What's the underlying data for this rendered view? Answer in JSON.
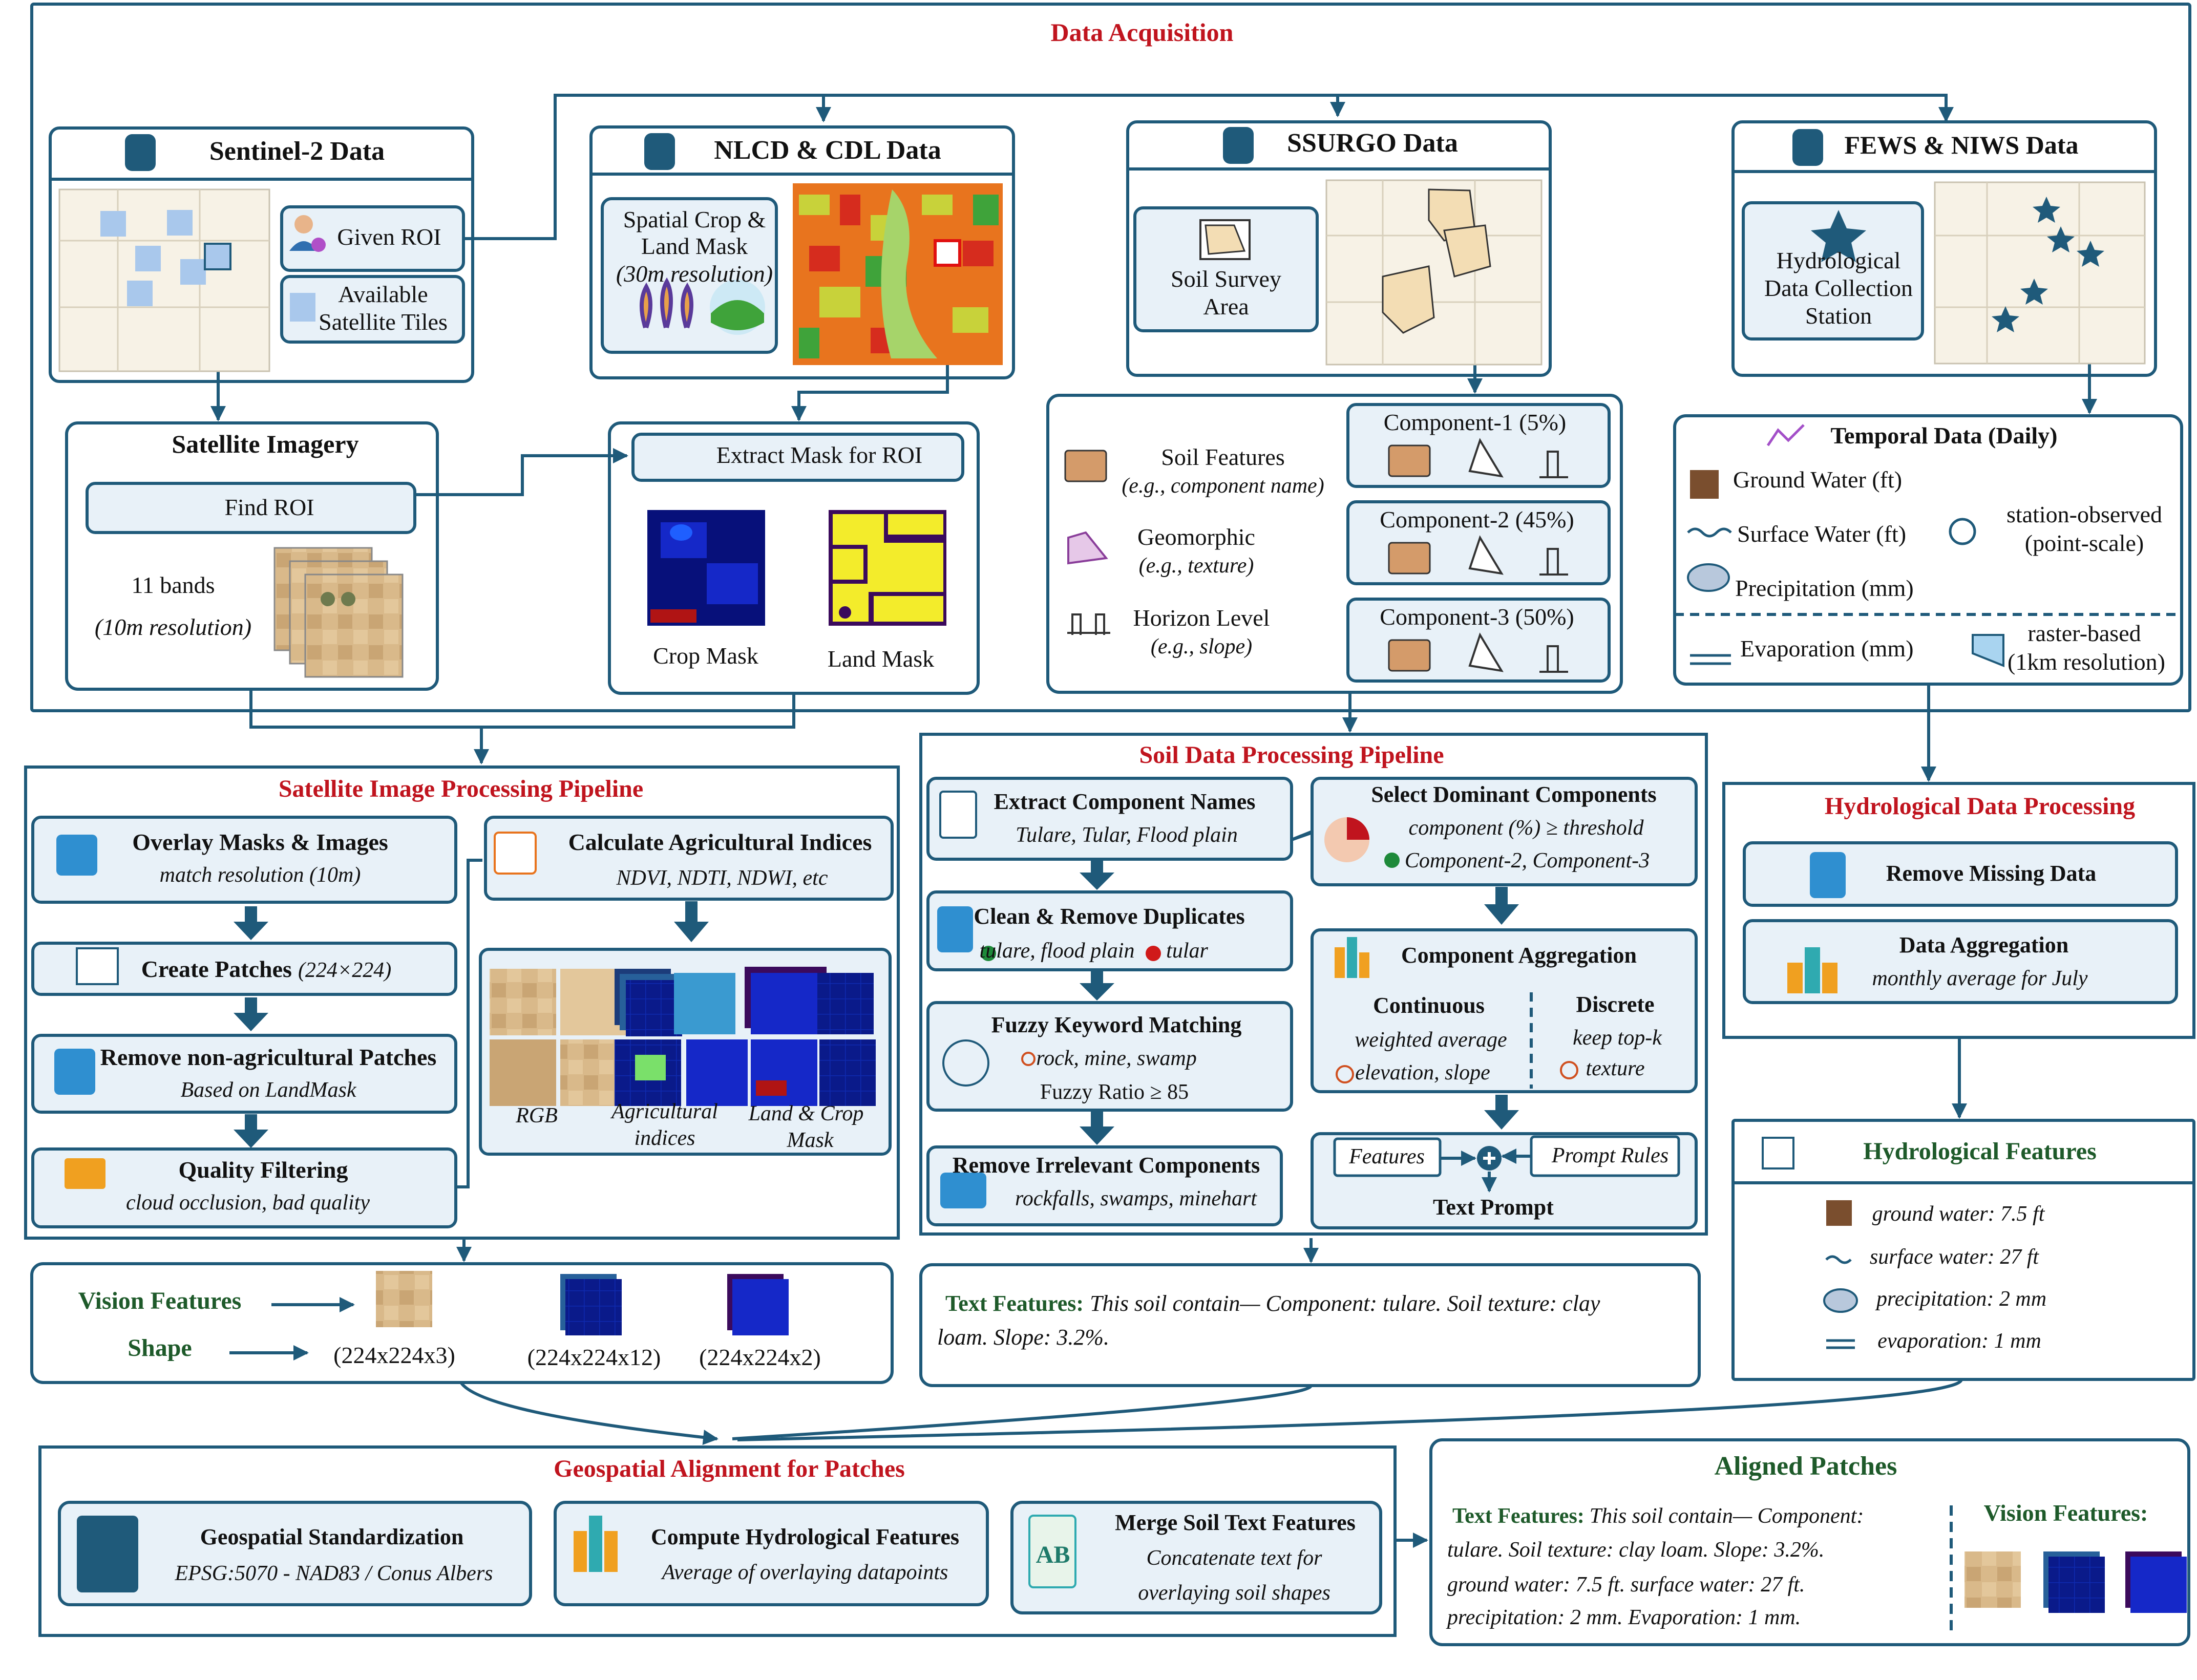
{
  "colors": {
    "frame": "#1f5a7a",
    "box_fill": "#e8f1f8",
    "red": "#c0141e",
    "green": "#1e5a2a",
    "text": "#111111"
  },
  "acq": {
    "title": "Data Acquisition",
    "sentinel": {
      "title": "Sentinel-2 Data",
      "roi": "Given ROI",
      "tiles_1": "Available",
      "tiles_2": "Satellite Tiles"
    },
    "nlcd": {
      "title": "NLCD & CDL Data",
      "line1": "Spatial Crop &",
      "line2": "Land Mask",
      "line3": "(30m resolution)"
    },
    "ssurgo": {
      "title": "SSURGO Data",
      "area_1": "Soil Survey",
      "area_2": "Area"
    },
    "fews": {
      "title": "FEWS & NIWS Data",
      "st_1": "Hydrological",
      "st_2": "Data Collection",
      "st_3": "Station"
    },
    "sat": {
      "title": "Satellite Imagery",
      "find": "Find ROI",
      "bands": "11 bands",
      "res": "(10m resolution)"
    },
    "mask": {
      "title": "Extract Mask for ROI",
      "crop": "Crop Mask",
      "land": "Land Mask"
    },
    "soil": {
      "feat": "Soil Features",
      "feat_eg": "(e.g., component name)",
      "geo": "Geomorphic",
      "geo_eg": "(e.g., texture)",
      "hor": "Horizon Level",
      "hor_eg": "(e.g., slope)",
      "c1": "Component-1 (5%)",
      "c2": "Component-2 (45%)",
      "c3": "Component-3 (50%)"
    },
    "temporal": {
      "title": "Temporal Data (Daily)",
      "gw": "Ground Water (ft)",
      "sw": "Surface Water (ft)",
      "pr": "Precipitation (mm)",
      "ev": "Evaporation (mm)",
      "so_1": "station-observed",
      "so_2": "(point-scale)",
      "rb_1": "raster-based",
      "rb_2": "(1km resolution)"
    }
  },
  "sat_pipe": {
    "title": "Satellite Image Processing Pipeline",
    "overlay": "Overlay Masks & Images",
    "overlay_s": "match resolution (10m)",
    "patches": "Create Patches",
    "patches_s": "(224×224)",
    "remove": "Remove non-agricultural Patches",
    "remove_s": "Based on LandMask",
    "quality": "Quality Filtering",
    "quality_s": "cloud occlusion, bad quality",
    "indices": "Calculate Agricultural Indices",
    "indices_s": "NDVI, NDTI, NDWI,  etc",
    "rgb": "RGB",
    "agri_1": "Agricultural",
    "agri_2": "indices",
    "lc_1": "Land & Crop",
    "lc_2": "Mask"
  },
  "soil_pipe": {
    "title": "Soil Data Processing Pipeline",
    "extract": "Extract Component Names",
    "extract_s": "Tulare, Tular, Flood plain",
    "clean": "Clean & Remove Duplicates",
    "clean_ok": "tulare, flood plain",
    "clean_bad": "tular",
    "fuzzy": "Fuzzy Keyword Matching",
    "fuzzy_s1": "rock, mine, swamp",
    "fuzzy_s2": "Fuzzy Ratio ≥ 85",
    "irr": "Remove Irrelevant Components",
    "irr_s": "rockfalls, swamps, minehart",
    "dom": "Select Dominant Components",
    "dom_s1": "component (%) ≥ threshold",
    "dom_s2": "Component-2, Component-3",
    "agg": "Component Aggregation",
    "cont": "Continuous",
    "cont_1": "weighted average",
    "cont_2": "elevation, slope",
    "disc": "Discrete",
    "disc_1": "keep top-k",
    "disc_2": "texture",
    "features": "Features",
    "rules": "Prompt Rules",
    "prompt": "Text Prompt"
  },
  "hydro_pipe": {
    "title": "Hydrological Data Processing",
    "missing": "Remove Missing Data",
    "agg": "Data Aggregation",
    "agg_s": "monthly average for July"
  },
  "hydro_feat": {
    "title": "Hydrological Features",
    "gw": "ground water: 7.5 ft",
    "sw": "surface water: 27 ft",
    "pr": "precipitation: 2 mm",
    "ev": "evaporation: 1 mm"
  },
  "vision": {
    "label": "Vision Features",
    "shape": "Shape",
    "s1": "(224x224x3)",
    "s2": "(224x224x12)",
    "s3": "(224x224x2)"
  },
  "text_feat": {
    "label": "Text Features:",
    "l1": "This soil contain— Component: tulare. Soil texture: clay",
    "l2": "loam. Slope: 3.2%."
  },
  "geo": {
    "title": "Geospatial Alignment for Patches",
    "std": "Geospatial  Standardization",
    "std_s": "EPSG:5070 - NAD83 / Conus Albers",
    "hyd": "Compute Hydrological Features",
    "hyd_s": "Average of overlaying datapoints",
    "merge": "Merge Soil Text Features",
    "merge_1": "Concatenate text for",
    "merge_2": "overlaying soil shapes",
    "ab": "AB"
  },
  "aligned": {
    "title": "Aligned Patches",
    "tf": "Text Features:",
    "vf": "Vision Features:",
    "l1": "This soil contain— Component:",
    "l2": "tulare.  Soil  texture:  clay  loam.  Slope:  3.2%.",
    "l3": "ground   water:   7.5   ft.   surface   water:   27   ft.",
    "l4": "precipitation: 2 mm. Evaporation: 1 mm."
  }
}
